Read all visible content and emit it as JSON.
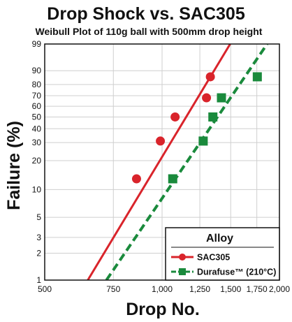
{
  "chart_data": {
    "type": "scatter",
    "title": "Drop Shock vs. SAC305",
    "subtitle": "Weibull Plot of 110g ball with 500mm drop height",
    "xlabel": "Drop No.",
    "ylabel": "Failure (%)",
    "x_scale": "log",
    "y_scale": "weibull",
    "xlim": [
      500,
      2000
    ],
    "ylim": [
      1,
      99
    ],
    "x_ticks": [
      500,
      750,
      1000,
      1250,
      1500,
      1750,
      2000
    ],
    "x_tick_labels": [
      "500",
      "750",
      "1,000",
      "1,250",
      "1,500",
      "1,750",
      "2,000"
    ],
    "y_ticks": [
      1,
      2,
      3,
      5,
      10,
      20,
      30,
      40,
      50,
      60,
      70,
      80,
      90,
      99
    ],
    "y_tick_labels": [
      "1",
      "2",
      "3",
      "5",
      "10",
      "20",
      "30",
      "40",
      "50",
      "60",
      "70",
      "80",
      "90",
      "99"
    ],
    "grid": true,
    "legend": {
      "title": "Alloy",
      "position": "bottom-right"
    },
    "series": [
      {
        "name": "SAC305",
        "color": "#d9242b",
        "marker": "circle",
        "line_style": "solid",
        "points": [
          {
            "x": 860,
            "y": 13
          },
          {
            "x": 990,
            "y": 31
          },
          {
            "x": 1080,
            "y": 50
          },
          {
            "x": 1300,
            "y": 68
          },
          {
            "x": 1330,
            "y": 86
          }
        ],
        "fit_line": [
          {
            "x": 645,
            "y": 1
          },
          {
            "x": 1495,
            "y": 99
          }
        ]
      },
      {
        "name": "Durafuse™ (210°C)",
        "color": "#1a8a3c",
        "marker": "square",
        "line_style": "dashed",
        "points": [
          {
            "x": 1065,
            "y": 13
          },
          {
            "x": 1275,
            "y": 31
          },
          {
            "x": 1350,
            "y": 50
          },
          {
            "x": 1420,
            "y": 68
          },
          {
            "x": 1755,
            "y": 86
          }
        ],
        "fit_line": [
          {
            "x": 720,
            "y": 1
          },
          {
            "x": 1860,
            "y": 99
          }
        ]
      }
    ]
  }
}
